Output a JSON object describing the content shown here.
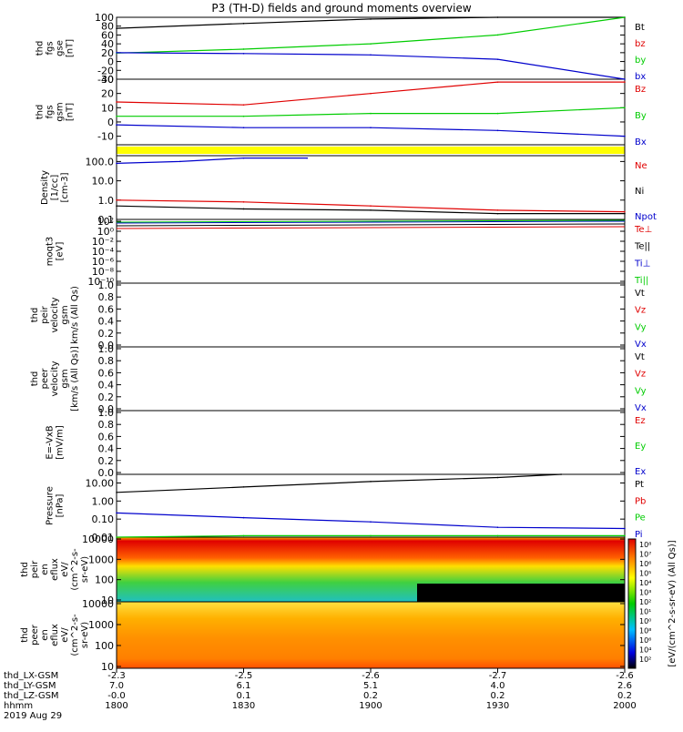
{
  "title": "P3 (TH-D) fields and ground moments overview",
  "date_label": "2019 Aug 29",
  "colors": {
    "black": "#000000",
    "red": "#e00000",
    "green": "#00cc00",
    "blue": "#0000cc",
    "yellow": "#ffff00"
  },
  "panels": [
    {
      "id": "fgs_gse",
      "ylabel_lines": [
        "thd",
        "fgs",
        "gse",
        "[nT]"
      ],
      "ticks": [
        "100",
        "80",
        "60",
        "40",
        "20",
        "0",
        "-20",
        "-40"
      ],
      "legend": [
        {
          "text": "Bt",
          "color": "black"
        },
        {
          "text": "bz",
          "color": "red"
        },
        {
          "text": "by",
          "color": "green"
        },
        {
          "text": "bx",
          "color": "blue"
        }
      ]
    },
    {
      "id": "fgs_gsm",
      "ylabel_lines": [
        "thd",
        "fgs",
        "gsm",
        "[nT]"
      ],
      "ticks": [
        "30",
        "20",
        "10",
        "0",
        "-10"
      ],
      "legend": [
        {
          "text": "Bz",
          "color": "red"
        },
        {
          "text": "By",
          "color": "green"
        },
        {
          "text": "Bx",
          "color": "blue"
        }
      ]
    },
    {
      "id": "flag",
      "ylabel_lines": [],
      "ticks": [],
      "legend": []
    },
    {
      "id": "density",
      "ylabel_lines": [
        "Density",
        "[1/cc]",
        "[cm-3]"
      ],
      "ticks": [
        "100.0",
        "10.0",
        "1.0",
        "0.1"
      ],
      "legend": [
        {
          "text": "Ne",
          "color": "red"
        },
        {
          "text": "Ni",
          "color": "black"
        },
        {
          "text": "Npot",
          "color": "blue"
        }
      ]
    },
    {
      "id": "temp",
      "ylabel_lines": [
        "moqt3",
        "[eV]"
      ],
      "ticks": [
        "10²",
        "10⁰",
        "10⁻²",
        "10⁻⁴",
        "10⁻⁶",
        "10⁻⁸",
        "10⁻¹⁰"
      ],
      "legend": [
        {
          "text": "Te⊥",
          "color": "red"
        },
        {
          "text": "Te||",
          "color": "black"
        },
        {
          "text": "Ti⊥",
          "color": "blue"
        },
        {
          "text": "Ti||",
          "color": "green"
        }
      ]
    },
    {
      "id": "peir_vel",
      "ylabel_lines": [
        "thd",
        "peir",
        "velocity",
        "gsm",
        "km/s (All Qs)"
      ],
      "ticks": [
        "1.0",
        "0.8",
        "0.6",
        "0.4",
        "0.2",
        "0.0"
      ],
      "legend": [
        {
          "text": "Vt",
          "color": "black"
        },
        {
          "text": "Vz",
          "color": "red"
        },
        {
          "text": "Vy",
          "color": "green"
        },
        {
          "text": "Vx",
          "color": "blue"
        }
      ]
    },
    {
      "id": "peer_vel",
      "ylabel_lines": [
        "thd",
        "peer",
        "velocity",
        "gsm",
        "[km/s (All Qs)]"
      ],
      "ticks": [
        "1.0",
        "0.8",
        "0.6",
        "0.4",
        "0.2",
        "0.0"
      ],
      "legend": [
        {
          "text": "Vt",
          "color": "black"
        },
        {
          "text": "Vz",
          "color": "red"
        },
        {
          "text": "Vy",
          "color": "green"
        },
        {
          "text": "Vx",
          "color": "blue"
        }
      ]
    },
    {
      "id": "efield",
      "ylabel_lines": [
        "E=-VxB",
        "[mV/m]"
      ],
      "ticks": [
        "1.0",
        "0.8",
        "0.6",
        "0.4",
        "0.2",
        "0.0"
      ],
      "legend": [
        {
          "text": "Ez",
          "color": "red"
        },
        {
          "text": "Ey",
          "color": "green"
        },
        {
          "text": "Ex",
          "color": "blue"
        }
      ]
    },
    {
      "id": "pressure",
      "ylabel_lines": [
        "Pressure",
        "[nPa]"
      ],
      "ticks": [
        "10.00",
        "1.00",
        "0.10",
        "0.01"
      ],
      "legend": [
        {
          "text": "Pt",
          "color": "black"
        },
        {
          "text": "Pb",
          "color": "red"
        },
        {
          "text": "Pe",
          "color": "green"
        },
        {
          "text": "Pi",
          "color": "blue"
        }
      ]
    },
    {
      "id": "peir_spec",
      "ylabel_lines": [
        "thd",
        "peir",
        "en",
        "eflux",
        "eV/",
        "(cm^2-s-",
        "sr-eV)"
      ],
      "ticks": [
        "10000",
        "1000",
        "100",
        "10"
      ],
      "legend": []
    },
    {
      "id": "peer_spec",
      "ylabel_lines": [
        "thd",
        "peer",
        "en",
        "eflux",
        "eV/",
        "(cm^2-s-",
        "sr-eV)"
      ],
      "ticks": [
        "10000",
        "1000",
        "100",
        "10"
      ],
      "legend": []
    }
  ],
  "colorbar": {
    "label": "[eV/(cm^2-s-sr-eV) (All Qs)]",
    "ticks": [
      "10⁸",
      "10⁷",
      "10⁶",
      "10⁵",
      "10⁴",
      "10³",
      "10²",
      "10¹",
      "10⁰",
      "10⁸",
      "10⁶",
      "10⁴",
      "10²"
    ]
  },
  "x_axis": {
    "rows": [
      {
        "label": "thd_LX-GSM",
        "values": [
          "-2.3",
          "-2.5",
          "-2.6",
          "-2.7",
          "-2.6"
        ]
      },
      {
        "label": "thd_LY-GSM",
        "values": [
          "7.0",
          "6.1",
          "5.1",
          "4.0",
          "2.6"
        ]
      },
      {
        "label": "thd_LZ-GSM",
        "values": [
          "-0.0",
          "0.1",
          "0.2",
          "0.2",
          "0.2"
        ]
      },
      {
        "label": "hhmm",
        "values": [
          "1800",
          "1830",
          "1900",
          "1930",
          "2000"
        ]
      }
    ]
  },
  "chart_data": {
    "type": "line",
    "title": "P3 (TH-D) fields and ground moments overview",
    "x_ticks_hhmm": [
      "1800",
      "1830",
      "1900",
      "1930",
      "2000"
    ],
    "series": [
      {
        "panel": "fgs_gse",
        "name": "Bt",
        "x": [
          "1800",
          "1830",
          "1900",
          "1930",
          "2000"
        ],
        "values": [
          75,
          86,
          96,
          100,
          100
        ]
      },
      {
        "panel": "fgs_gse",
        "name": "by",
        "x": [
          "1800",
          "1830",
          "1900",
          "1930",
          "2000"
        ],
        "values": [
          19,
          28,
          40,
          60,
          100
        ]
      },
      {
        "panel": "fgs_gse",
        "name": "bx",
        "x": [
          "1800",
          "1830",
          "1900",
          "1930",
          "2000"
        ],
        "values": [
          20,
          18,
          15,
          5,
          -40
        ]
      },
      {
        "panel": "fgs_gsm",
        "name": "Bz",
        "x": [
          "1800",
          "1830",
          "1900",
          "1930",
          "2000"
        ],
        "values": [
          14,
          12,
          20,
          28,
          28
        ]
      },
      {
        "panel": "fgs_gsm",
        "name": "By",
        "x": [
          "1800",
          "1830",
          "1900",
          "1930",
          "2000"
        ],
        "values": [
          4,
          4,
          6,
          6,
          10
        ]
      },
      {
        "panel": "fgs_gsm",
        "name": "Bx",
        "x": [
          "1800",
          "1830",
          "1900",
          "1930",
          "2000"
        ],
        "values": [
          -2,
          -4,
          -4,
          -6,
          -10
        ]
      },
      {
        "panel": "density",
        "name": "Npot",
        "x": [
          "1800",
          "1815",
          "1830",
          "1845"
        ],
        "values": [
          80,
          100,
          150,
          150
        ]
      },
      {
        "panel": "density",
        "name": "Ne",
        "x": [
          "1800",
          "1830",
          "1900",
          "1930",
          "2000"
        ],
        "values": [
          1.0,
          0.8,
          0.5,
          0.3,
          0.25
        ]
      },
      {
        "panel": "density",
        "name": "Ni",
        "x": [
          "1800",
          "1830",
          "1900",
          "1930",
          "2000"
        ],
        "values": [
          0.5,
          0.35,
          0.3,
          0.2,
          0.2
        ]
      },
      {
        "panel": "pressure",
        "name": "Pt",
        "x": [
          "1800",
          "1830",
          "1900",
          "1930",
          "1945"
        ],
        "values": [
          3.0,
          6.0,
          12.0,
          20.0,
          30.0
        ]
      },
      {
        "panel": "pressure",
        "name": "Pi",
        "x": [
          "1800",
          "1830",
          "1900",
          "1930",
          "2000"
        ],
        "values": [
          0.22,
          0.12,
          0.07,
          0.035,
          0.03
        ]
      },
      {
        "panel": "pressure",
        "name": "Pe",
        "x": [
          "1800",
          "1830",
          "1900",
          "1930",
          "2000"
        ],
        "values": [
          0.01,
          0.012,
          0.012,
          0.012,
          0.012
        ]
      }
    ]
  }
}
